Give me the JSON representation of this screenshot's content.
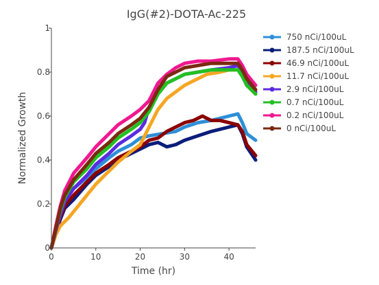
{
  "chart_data": {
    "type": "line",
    "title": "IgG(#2)-DOTA-Ac-225",
    "xlabel": "Time (hr)",
    "ylabel": "Normalized Growth",
    "xlim": [
      0,
      46
    ],
    "ylim": [
      0,
      1
    ],
    "xticks": [
      "0",
      "10",
      "20",
      "30",
      "40"
    ],
    "xtick_values": [
      0,
      10,
      20,
      30,
      40
    ],
    "yticks": [
      "0",
      "0.2",
      "0.4",
      "0.6",
      "0.8",
      "1"
    ],
    "ytick_values": [
      0,
      0.2,
      0.4,
      0.6,
      0.8,
      1
    ],
    "grid": false,
    "legend_position": "right",
    "series": [
      {
        "name": "750  nCi/100uL",
        "color": "#2e8fd8",
        "points": [
          [
            0,
            0
          ],
          [
            0.5,
            0.04
          ],
          [
            1,
            0.09
          ],
          [
            2,
            0.16
          ],
          [
            3,
            0.22
          ],
          [
            5,
            0.27
          ],
          [
            8,
            0.32
          ],
          [
            10,
            0.36
          ],
          [
            13,
            0.41
          ],
          [
            15,
            0.44
          ],
          [
            18,
            0.47
          ],
          [
            20,
            0.5
          ],
          [
            22,
            0.51
          ],
          [
            25,
            0.52
          ],
          [
            28,
            0.53
          ],
          [
            30,
            0.55
          ],
          [
            33,
            0.57
          ],
          [
            36,
            0.58
          ],
          [
            40,
            0.6
          ],
          [
            42,
            0.61
          ],
          [
            43,
            0.57
          ],
          [
            44,
            0.52
          ],
          [
            46,
            0.49
          ]
        ]
      },
      {
        "name": "187.5  nCi/100uL",
        "color": "#0b1d7a",
        "points": [
          [
            0,
            0
          ],
          [
            1,
            0.07
          ],
          [
            2,
            0.13
          ],
          [
            3,
            0.18
          ],
          [
            5,
            0.22
          ],
          [
            8,
            0.29
          ],
          [
            10,
            0.33
          ],
          [
            13,
            0.37
          ],
          [
            15,
            0.4
          ],
          [
            18,
            0.43
          ],
          [
            20,
            0.45
          ],
          [
            22,
            0.47
          ],
          [
            24,
            0.48
          ],
          [
            26,
            0.46
          ],
          [
            28,
            0.47
          ],
          [
            30,
            0.49
          ],
          [
            33,
            0.51
          ],
          [
            36,
            0.53
          ],
          [
            40,
            0.55
          ],
          [
            42,
            0.56
          ],
          [
            43,
            0.52
          ],
          [
            44,
            0.46
          ],
          [
            46,
            0.4
          ]
        ]
      },
      {
        "name": "46.9  nCi/100uL",
        "color": "#8b0000",
        "points": [
          [
            0,
            0
          ],
          [
            1,
            0.07
          ],
          [
            2,
            0.14
          ],
          [
            3,
            0.19
          ],
          [
            5,
            0.24
          ],
          [
            8,
            0.3
          ],
          [
            10,
            0.34
          ],
          [
            13,
            0.38
          ],
          [
            15,
            0.41
          ],
          [
            18,
            0.44
          ],
          [
            20,
            0.46
          ],
          [
            22,
            0.49
          ],
          [
            24,
            0.5
          ],
          [
            26,
            0.53
          ],
          [
            28,
            0.55
          ],
          [
            30,
            0.57
          ],
          [
            32,
            0.58
          ],
          [
            34,
            0.6
          ],
          [
            36,
            0.58
          ],
          [
            38,
            0.58
          ],
          [
            40,
            0.57
          ],
          [
            42,
            0.56
          ],
          [
            43,
            0.53
          ],
          [
            44,
            0.47
          ],
          [
            46,
            0.42
          ]
        ]
      },
      {
        "name": "11.7  nCi/100uL",
        "color": "#f5a623",
        "points": [
          [
            0,
            0
          ],
          [
            1,
            0.06
          ],
          [
            2,
            0.1
          ],
          [
            4,
            0.14
          ],
          [
            6,
            0.19
          ],
          [
            8,
            0.24
          ],
          [
            10,
            0.29
          ],
          [
            12,
            0.33
          ],
          [
            15,
            0.39
          ],
          [
            18,
            0.44
          ],
          [
            20,
            0.47
          ],
          [
            22,
            0.55
          ],
          [
            24,
            0.63
          ],
          [
            26,
            0.68
          ],
          [
            28,
            0.71
          ],
          [
            30,
            0.74
          ],
          [
            32,
            0.76
          ],
          [
            35,
            0.79
          ],
          [
            38,
            0.8
          ],
          [
            40,
            0.81
          ],
          [
            42,
            0.81
          ],
          [
            43,
            0.79
          ],
          [
            44,
            0.74
          ],
          [
            46,
            0.7
          ]
        ]
      },
      {
        "name": "2.9  nCi/100uL",
        "color": "#5b2be0",
        "points": [
          [
            0,
            0
          ],
          [
            1,
            0.08
          ],
          [
            2,
            0.15
          ],
          [
            3,
            0.21
          ],
          [
            5,
            0.27
          ],
          [
            8,
            0.33
          ],
          [
            10,
            0.38
          ],
          [
            13,
            0.43
          ],
          [
            15,
            0.47
          ],
          [
            18,
            0.51
          ],
          [
            20,
            0.54
          ],
          [
            21,
            0.57
          ],
          [
            22,
            0.64
          ],
          [
            24,
            0.71
          ],
          [
            26,
            0.75
          ],
          [
            28,
            0.77
          ],
          [
            30,
            0.79
          ],
          [
            33,
            0.8
          ],
          [
            36,
            0.81
          ],
          [
            40,
            0.82
          ],
          [
            42,
            0.83
          ],
          [
            43,
            0.8
          ],
          [
            44,
            0.75
          ],
          [
            46,
            0.71
          ]
        ]
      },
      {
        "name": "0.7  nCi/100uL",
        "color": "#22c022",
        "points": [
          [
            0,
            0
          ],
          [
            1,
            0.09
          ],
          [
            2,
            0.17
          ],
          [
            3,
            0.23
          ],
          [
            5,
            0.3
          ],
          [
            8,
            0.36
          ],
          [
            10,
            0.41
          ],
          [
            13,
            0.46
          ],
          [
            15,
            0.5
          ],
          [
            18,
            0.54
          ],
          [
            20,
            0.57
          ],
          [
            22,
            0.62
          ],
          [
            24,
            0.7
          ],
          [
            26,
            0.75
          ],
          [
            28,
            0.77
          ],
          [
            30,
            0.79
          ],
          [
            33,
            0.8
          ],
          [
            36,
            0.81
          ],
          [
            40,
            0.81
          ],
          [
            42,
            0.81
          ],
          [
            43,
            0.78
          ],
          [
            44,
            0.74
          ],
          [
            46,
            0.7
          ]
        ]
      },
      {
        "name": "0.2  nCi/100uL",
        "color": "#f01890",
        "points": [
          [
            0,
            0
          ],
          [
            1,
            0.1
          ],
          [
            2,
            0.19
          ],
          [
            3,
            0.26
          ],
          [
            5,
            0.34
          ],
          [
            8,
            0.41
          ],
          [
            10,
            0.46
          ],
          [
            13,
            0.52
          ],
          [
            15,
            0.56
          ],
          [
            18,
            0.6
          ],
          [
            20,
            0.63
          ],
          [
            22,
            0.67
          ],
          [
            24,
            0.75
          ],
          [
            26,
            0.79
          ],
          [
            28,
            0.82
          ],
          [
            30,
            0.84
          ],
          [
            33,
            0.85
          ],
          [
            36,
            0.85
          ],
          [
            40,
            0.86
          ],
          [
            42,
            0.86
          ],
          [
            43,
            0.83
          ],
          [
            44,
            0.79
          ],
          [
            46,
            0.74
          ]
        ]
      },
      {
        "name": "0  nCi/100uL",
        "color": "#7b2a10",
        "points": [
          [
            0,
            0
          ],
          [
            1,
            0.09
          ],
          [
            2,
            0.18
          ],
          [
            3,
            0.24
          ],
          [
            5,
            0.31
          ],
          [
            8,
            0.38
          ],
          [
            10,
            0.43
          ],
          [
            13,
            0.48
          ],
          [
            15,
            0.52
          ],
          [
            18,
            0.56
          ],
          [
            20,
            0.59
          ],
          [
            22,
            0.64
          ],
          [
            24,
            0.72
          ],
          [
            26,
            0.78
          ],
          [
            28,
            0.8
          ],
          [
            30,
            0.82
          ],
          [
            33,
            0.83
          ],
          [
            36,
            0.84
          ],
          [
            40,
            0.84
          ],
          [
            42,
            0.84
          ],
          [
            43,
            0.81
          ],
          [
            44,
            0.77
          ],
          [
            46,
            0.72
          ]
        ]
      }
    ]
  }
}
